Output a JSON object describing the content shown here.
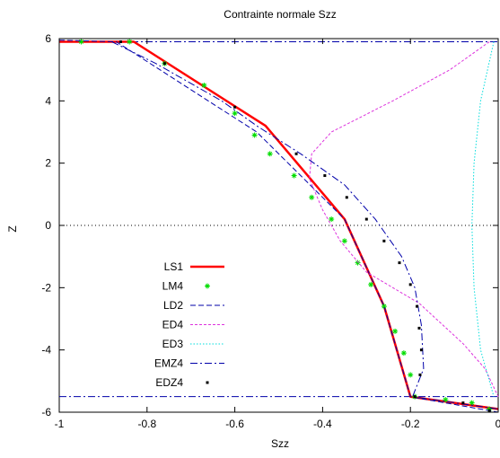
{
  "chart_data": {
    "type": "line",
    "title": "Contrainte normale Szz",
    "xlabel": "Szz",
    "ylabel": "Z",
    "xlim": [
      -1,
      0
    ],
    "ylim": [
      -6,
      6
    ],
    "x_ticks": [
      -1,
      -0.8,
      -0.6,
      -0.4,
      -0.2,
      0
    ],
    "x_tick_labels": [
      "-1",
      "-0.8",
      "-0.6",
      "-0.4",
      "-0.2",
      "0"
    ],
    "y_ticks": [
      -6,
      -4,
      -2,
      0,
      2,
      4,
      6
    ],
    "y_tick_labels": [
      "-6",
      "-4",
      "-2",
      "0",
      "2",
      "4",
      "6"
    ],
    "zero_line": true,
    "grid": false,
    "legend_position": "lower-left",
    "series": [
      {
        "name": "LS1",
        "color": "#ff0000",
        "style": "solid-thick",
        "points": [
          [
            -1.0,
            5.9
          ],
          [
            -0.83,
            5.9
          ],
          [
            -0.53,
            3.2
          ],
          [
            -0.35,
            0.2
          ],
          [
            -0.26,
            -2.6
          ],
          [
            -0.2,
            -5.5
          ],
          [
            0.0,
            -5.9
          ]
        ]
      },
      {
        "name": "LM4",
        "color": "#00dd00",
        "style": "markers-star",
        "points": [
          [
            -0.95,
            5.9
          ],
          [
            -0.84,
            5.9
          ],
          [
            -0.76,
            5.2
          ],
          [
            -0.67,
            4.5
          ],
          [
            -0.6,
            3.6
          ],
          [
            -0.555,
            2.9
          ],
          [
            -0.52,
            2.3
          ],
          [
            -0.465,
            1.6
          ],
          [
            -0.425,
            0.9
          ],
          [
            -0.38,
            0.2
          ],
          [
            -0.35,
            -0.5
          ],
          [
            -0.32,
            -1.2
          ],
          [
            -0.29,
            -1.9
          ],
          [
            -0.26,
            -2.6
          ],
          [
            -0.235,
            -3.4
          ],
          [
            -0.215,
            -4.1
          ],
          [
            -0.2,
            -4.8
          ],
          [
            -0.19,
            -5.5
          ],
          [
            -0.12,
            -5.6
          ],
          [
            -0.06,
            -5.7
          ],
          [
            -0.02,
            -5.9
          ]
        ]
      },
      {
        "name": "LD2",
        "color": "#0000aa",
        "style": "dashed",
        "points": [
          [
            -1.0,
            5.95
          ],
          [
            -0.87,
            5.9
          ],
          [
            -0.55,
            3.0
          ],
          [
            -0.35,
            0.2
          ],
          [
            -0.26,
            -2.6
          ],
          [
            -0.2,
            -5.5
          ],
          [
            0.0,
            -6.0
          ]
        ]
      },
      {
        "name": "ED4",
        "color": "#dd33dd",
        "style": "dashed-fine",
        "points": [
          [
            -0.02,
            5.9
          ],
          [
            -0.11,
            5.0
          ],
          [
            -0.24,
            4.0
          ],
          [
            -0.38,
            3.0
          ],
          [
            -0.425,
            2.3
          ],
          [
            -0.43,
            1.5
          ],
          [
            -0.4,
            0.5
          ],
          [
            -0.36,
            -0.5
          ],
          [
            -0.3,
            -1.5
          ],
          [
            -0.18,
            -2.5
          ],
          [
            -0.08,
            -3.8
          ],
          [
            -0.03,
            -4.6
          ],
          [
            0.0,
            -5.5
          ]
        ]
      },
      {
        "name": "ED3",
        "color": "#00dddd",
        "style": "dotted",
        "points": [
          [
            -0.01,
            5.9
          ],
          [
            -0.04,
            4.0
          ],
          [
            -0.055,
            2.0
          ],
          [
            -0.06,
            0.0
          ],
          [
            -0.055,
            -2.0
          ],
          [
            -0.04,
            -4.0
          ],
          [
            -0.01,
            -5.5
          ]
        ]
      },
      {
        "name": "EMZ4",
        "color": "#0000aa",
        "style": "dash-dot",
        "points": [
          [
            -0.88,
            5.9
          ],
          [
            -0.78,
            5.2
          ],
          [
            -0.63,
            4.0
          ],
          [
            -0.55,
            3.2
          ],
          [
            -0.45,
            2.3
          ],
          [
            -0.35,
            1.3
          ],
          [
            -0.28,
            0.2
          ],
          [
            -0.22,
            -1.0
          ],
          [
            -0.19,
            -2.0
          ],
          [
            -0.175,
            -3.2
          ],
          [
            -0.17,
            -4.6
          ],
          [
            -0.195,
            -5.5
          ],
          [
            0.0,
            -5.9
          ]
        ]
      },
      {
        "name": "EDZ4",
        "color": "#000000",
        "style": "markers-dot",
        "points": [
          [
            -0.86,
            5.9
          ],
          [
            -0.76,
            5.2
          ],
          [
            -0.6,
            3.8
          ],
          [
            -0.46,
            2.3
          ],
          [
            -0.395,
            1.6
          ],
          [
            -0.345,
            0.9
          ],
          [
            -0.3,
            0.2
          ],
          [
            -0.26,
            -0.5
          ],
          [
            -0.225,
            -1.2
          ],
          [
            -0.2,
            -1.9
          ],
          [
            -0.185,
            -2.6
          ],
          [
            -0.18,
            -3.3
          ],
          [
            -0.175,
            -4.0
          ],
          [
            -0.178,
            -4.8
          ],
          [
            -0.19,
            -5.5
          ],
          [
            -0.08,
            -5.7
          ],
          [
            -0.02,
            -5.95
          ]
        ]
      }
    ],
    "reference_lines": [
      {
        "axis": "y",
        "value": 5.9,
        "color": "#0000aa",
        "style": "dash-dot"
      },
      {
        "axis": "y",
        "value": -5.5,
        "color": "#0000aa",
        "style": "dash-dot"
      },
      {
        "axis": "y",
        "value": 0,
        "color": "#000000",
        "style": "dotted"
      }
    ]
  }
}
